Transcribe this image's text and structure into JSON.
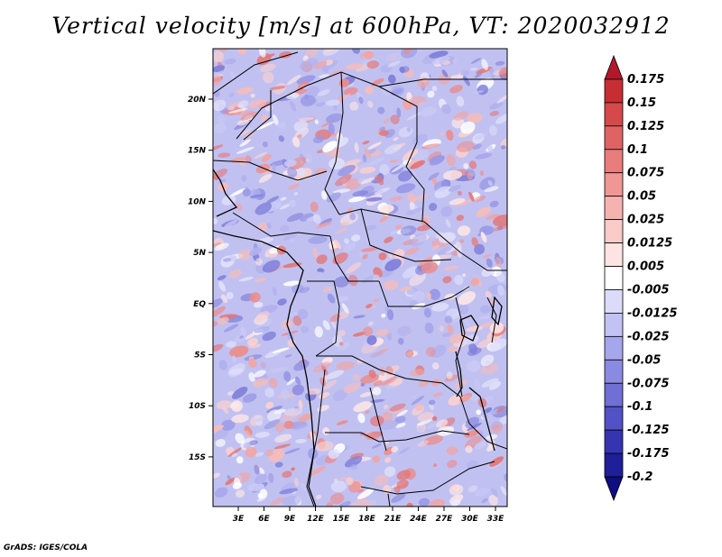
{
  "title": "Vertical velocity [m/s] at 600hPa, VT: 2020032912",
  "credit": "GrADS: IGES/COLA",
  "map": {
    "lat_labels": [
      "20N",
      "15N",
      "10N",
      "5N",
      "EQ",
      "5S",
      "10S",
      "15S"
    ],
    "lon_labels": [
      "3E",
      "6E",
      "9E",
      "12E",
      "15E",
      "18E",
      "21E",
      "24E",
      "27E",
      "30E",
      "33E"
    ]
  },
  "colorbar": {
    "levels": [
      "0.175",
      "0.15",
      "0.125",
      "0.1",
      "0.075",
      "0.05",
      "0.025",
      "0.0125",
      "0.005",
      "-0.005",
      "-0.0125",
      "-0.025",
      "-0.05",
      "-0.075",
      "-0.1",
      "-0.125",
      "-0.175",
      "-0.2"
    ],
    "colors": [
      "#b2182b",
      "#c62e34",
      "#d5494b",
      "#e06363",
      "#e87d7c",
      "#f09795",
      "#f5b3b0",
      "#facbc8",
      "#fde4e2",
      "#ffffff",
      "#dcdcfa",
      "#c2c2f4",
      "#a6a6ec",
      "#8a8ae2",
      "#6f6fd6",
      "#5252c6",
      "#3535b2",
      "#1f1f9a",
      "#0e0e80"
    ]
  }
}
